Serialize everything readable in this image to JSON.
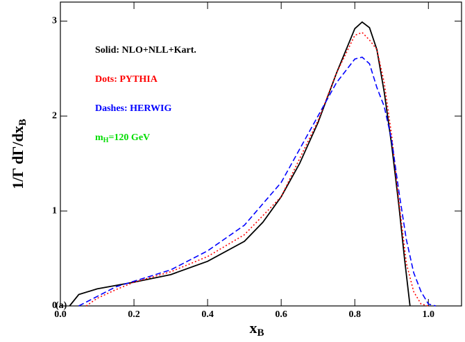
{
  "chart_data": {
    "type": "line",
    "x_label": "x",
    "x_label_sub": "B",
    "y_label": "1/Γ dΓ/dx",
    "y_label_sub": "B",
    "panel_label": "(a)",
    "notes": [
      {
        "text": "Solid: NLO+NLL+Kart.",
        "color": "#000000"
      },
      {
        "text": "Dots: PYTHIA",
        "color": "#ff0000"
      },
      {
        "text": "Dashes: HERWIG",
        "color": "#0000ff"
      },
      {
        "text": "m",
        "sub": "H",
        "after": "=120 GeV",
        "color": "#00dd00"
      }
    ],
    "xlim": [
      0,
      1.09
    ],
    "ylim": [
      0,
      3.2
    ],
    "xticks": [
      {
        "value": 0,
        "label": "0.0"
      },
      0.2,
      0.4,
      0.6,
      0.8,
      {
        "value": 1,
        "label": "1.0"
      }
    ],
    "yticks": [
      0,
      1,
      2,
      3
    ],
    "series": [
      {
        "name": "NLO+NLL+Kart.",
        "color": "#000000",
        "style": "solid",
        "x": [
          0.025,
          0.05,
          0.1,
          0.2,
          0.3,
          0.4,
          0.5,
          0.55,
          0.6,
          0.65,
          0.7,
          0.75,
          0.8,
          0.82,
          0.84,
          0.86,
          0.88,
          0.9,
          0.92,
          0.935,
          0.95
        ],
        "values": [
          0,
          0.12,
          0.18,
          0.25,
          0.33,
          0.47,
          0.68,
          0.88,
          1.15,
          1.5,
          1.93,
          2.45,
          2.92,
          2.99,
          2.93,
          2.7,
          2.25,
          1.7,
          1.05,
          0.5,
          0
        ]
      },
      {
        "name": "PYTHIA",
        "color": "#ff0000",
        "style": "dotted",
        "x": [
          0.07,
          0.1,
          0.15,
          0.2,
          0.3,
          0.4,
          0.5,
          0.6,
          0.7,
          0.75,
          0.8,
          0.82,
          0.84,
          0.86,
          0.88,
          0.9,
          0.92,
          0.94,
          0.96,
          0.98,
          1.0
        ],
        "values": [
          0,
          0.08,
          0.17,
          0.25,
          0.36,
          0.52,
          0.75,
          1.15,
          1.95,
          2.45,
          2.85,
          2.88,
          2.8,
          2.7,
          2.35,
          1.8,
          1.1,
          0.45,
          0.15,
          0.02,
          0
        ]
      },
      {
        "name": "HERWIG",
        "color": "#0000ff",
        "style": "dashed",
        "x": [
          0.05,
          0.1,
          0.15,
          0.2,
          0.3,
          0.4,
          0.5,
          0.6,
          0.7,
          0.75,
          0.8,
          0.82,
          0.84,
          0.86,
          0.88,
          0.9,
          0.92,
          0.94,
          0.96,
          0.98,
          1.0,
          1.02
        ],
        "values": [
          0,
          0.1,
          0.2,
          0.26,
          0.38,
          0.58,
          0.85,
          1.3,
          2.0,
          2.35,
          2.6,
          2.62,
          2.55,
          2.3,
          2.1,
          1.75,
          1.2,
          0.7,
          0.35,
          0.15,
          0.02,
          0
        ]
      }
    ]
  }
}
